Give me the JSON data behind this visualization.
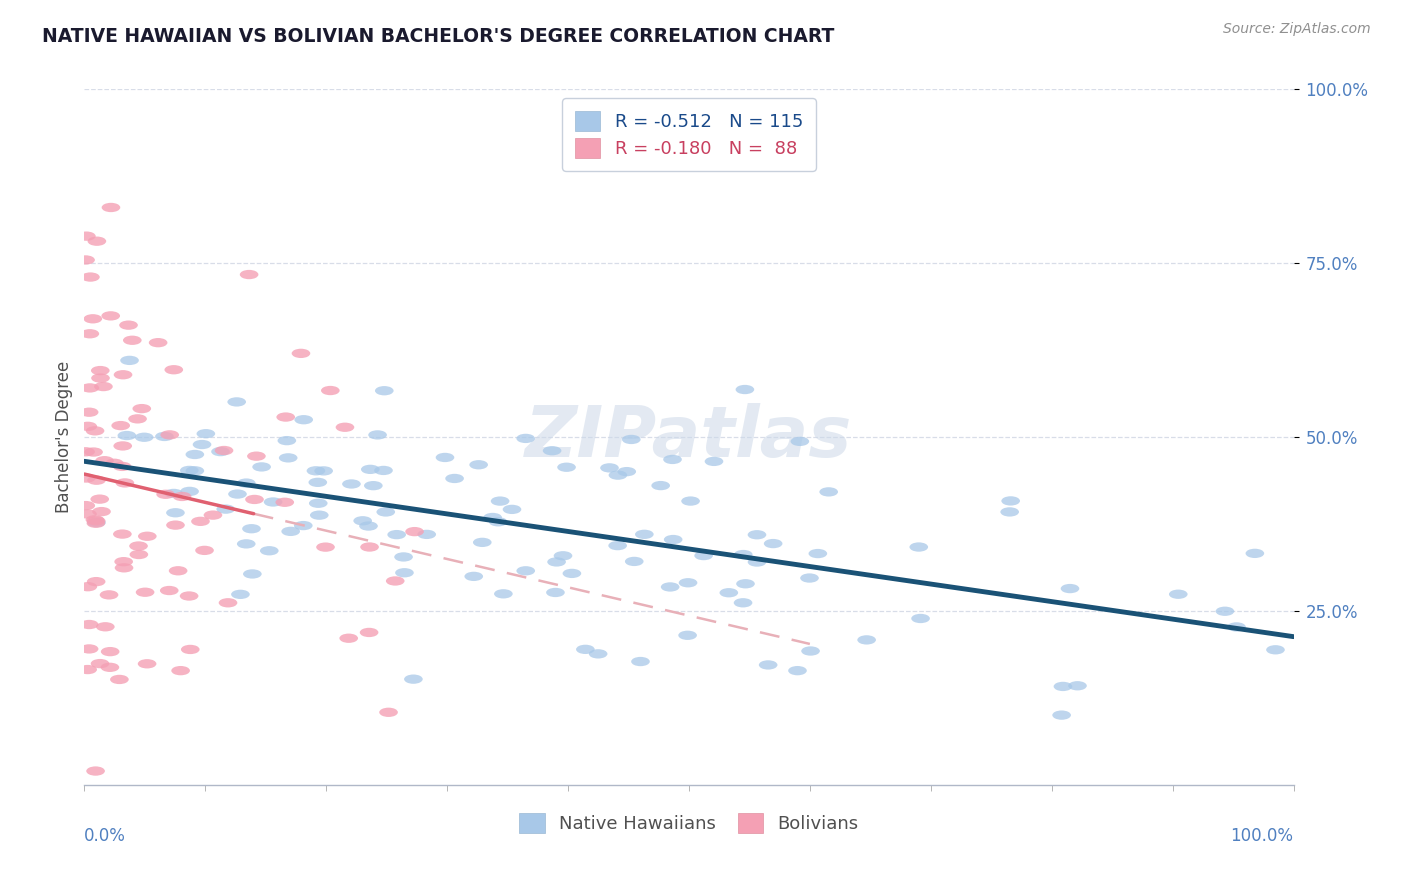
{
  "title": "NATIVE HAWAIIAN VS BOLIVIAN BACHELOR'S DEGREE CORRELATION CHART",
  "source": "Source: ZipAtlas.com",
  "ylabel": "Bachelor's Degree",
  "watermark_text": "ZIPatlas",
  "background_color": "#ffffff",
  "blue_scatter_color": "#a8c8e8",
  "pink_scatter_color": "#f4a0b4",
  "blue_line_color": "#1a5276",
  "pink_line_color": "#e06070",
  "pink_line_dashed_color": "#e8b0b8",
  "grid_color": "#d8dde8",
  "axis_label_color": "#5080c0",
  "title_color": "#1a1a2e",
  "ylabel_color": "#505050",
  "source_color": "#909090",
  "legend_edge_color": "#c8d0dc",
  "r_blue_text_color": "#1a4a8a",
  "r_pink_text_color": "#c84060",
  "legend_text_color": "#303030",
  "bottom_legend_text_color": "#505050"
}
